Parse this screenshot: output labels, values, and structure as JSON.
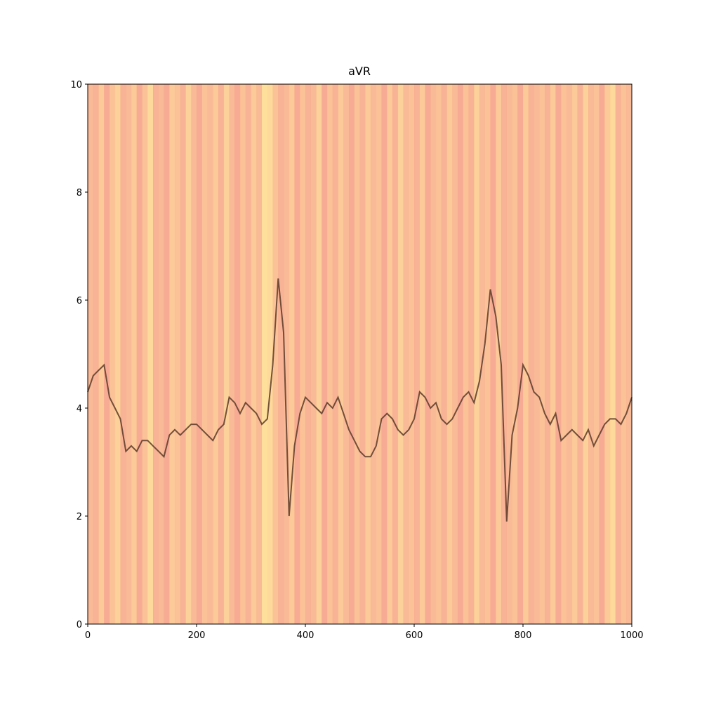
{
  "chart_data": {
    "type": "line",
    "title": "aVR",
    "xlim": [
      0,
      1000
    ],
    "ylim": [
      0,
      10
    ],
    "xticks": [
      0,
      200,
      400,
      600,
      800,
      1000
    ],
    "yticks": [
      0,
      2,
      4,
      6,
      8,
      10
    ],
    "background": {
      "colors": [
        "#f48a80",
        "#ffe48c"
      ],
      "opacity": 0.85,
      "bins": 10,
      "values": [
        0.4,
        0.3,
        0.6,
        0.2,
        0.5,
        0.7,
        0.3,
        0.4,
        0.6,
        0.2,
        0.5,
        0.8,
        0.3,
        0.4,
        0.2,
        0.6,
        0.5,
        0.3,
        0.7,
        0.4,
        0.2,
        0.5,
        0.4,
        0.6,
        0.3,
        0.7,
        0.4,
        0.2,
        0.5,
        0.3,
        0.6,
        0.4,
        0.9,
        0.8,
        0.5,
        0.3,
        0.4,
        0.6,
        0.2,
        0.5,
        0.3,
        0.4,
        0.7,
        0.2,
        0.5,
        0.3,
        0.6,
        0.4,
        0.2,
        0.5,
        0.3,
        0.6,
        0.4,
        0.5,
        0.2,
        0.6,
        0.3,
        0.7,
        0.4,
        0.5,
        0.3,
        0.6,
        0.2,
        0.4,
        0.5,
        0.3,
        0.6,
        0.4,
        0.2,
        0.5,
        0.3,
        0.7,
        0.4,
        0.5,
        0.2,
        0.6,
        0.3,
        0.4,
        0.5,
        0.2,
        0.6,
        0.3,
        0.4,
        0.5,
        0.3,
        0.6,
        0.2,
        0.5,
        0.4,
        0.6,
        0.3,
        0.7,
        0.4,
        0.5,
        0.2,
        0.6,
        0.8,
        0.3,
        0.5,
        0.4
      ]
    },
    "series": [
      {
        "name": "aVR",
        "color": "#5a3a28",
        "x": [
          0,
          10,
          20,
          30,
          40,
          50,
          60,
          70,
          80,
          90,
          100,
          110,
          120,
          130,
          140,
          150,
          160,
          170,
          180,
          190,
          200,
          210,
          220,
          230,
          240,
          250,
          260,
          270,
          280,
          290,
          300,
          310,
          320,
          330,
          340,
          350,
          360,
          370,
          380,
          390,
          400,
          410,
          420,
          430,
          440,
          450,
          460,
          470,
          480,
          490,
          500,
          510,
          520,
          530,
          540,
          550,
          560,
          570,
          580,
          590,
          600,
          610,
          620,
          630,
          640,
          650,
          660,
          670,
          680,
          690,
          700,
          710,
          720,
          730,
          740,
          750,
          760,
          770,
          780,
          790,
          800,
          810,
          820,
          830,
          840,
          850,
          860,
          870,
          880,
          890,
          900,
          910,
          920,
          930,
          940,
          950,
          960,
          970,
          980,
          990,
          1000
        ],
        "values": [
          4.3,
          4.6,
          4.7,
          4.8,
          4.2,
          4.0,
          3.8,
          3.2,
          3.3,
          3.2,
          3.4,
          3.4,
          3.3,
          3.2,
          3.1,
          3.5,
          3.6,
          3.5,
          3.6,
          3.7,
          3.7,
          3.6,
          3.5,
          3.4,
          3.6,
          3.7,
          4.2,
          4.1,
          3.9,
          4.1,
          4.0,
          3.9,
          3.7,
          3.8,
          4.8,
          6.4,
          5.4,
          2.0,
          3.3,
          3.9,
          4.2,
          4.1,
          4.0,
          3.9,
          4.1,
          4.0,
          4.2,
          3.9,
          3.6,
          3.4,
          3.2,
          3.1,
          3.1,
          3.3,
          3.8,
          3.9,
          3.8,
          3.6,
          3.5,
          3.6,
          3.8,
          4.3,
          4.2,
          4.0,
          4.1,
          3.8,
          3.7,
          3.8,
          4.0,
          4.2,
          4.3,
          4.1,
          4.5,
          5.2,
          6.2,
          5.7,
          4.8,
          1.9,
          3.5,
          4.0,
          4.8,
          4.6,
          4.3,
          4.2,
          3.9,
          3.7,
          3.9,
          3.4,
          3.5,
          3.6,
          3.5,
          3.4,
          3.6,
          3.3,
          3.5,
          3.7,
          3.8,
          3.8,
          3.7,
          3.9,
          4.2
        ]
      }
    ]
  }
}
